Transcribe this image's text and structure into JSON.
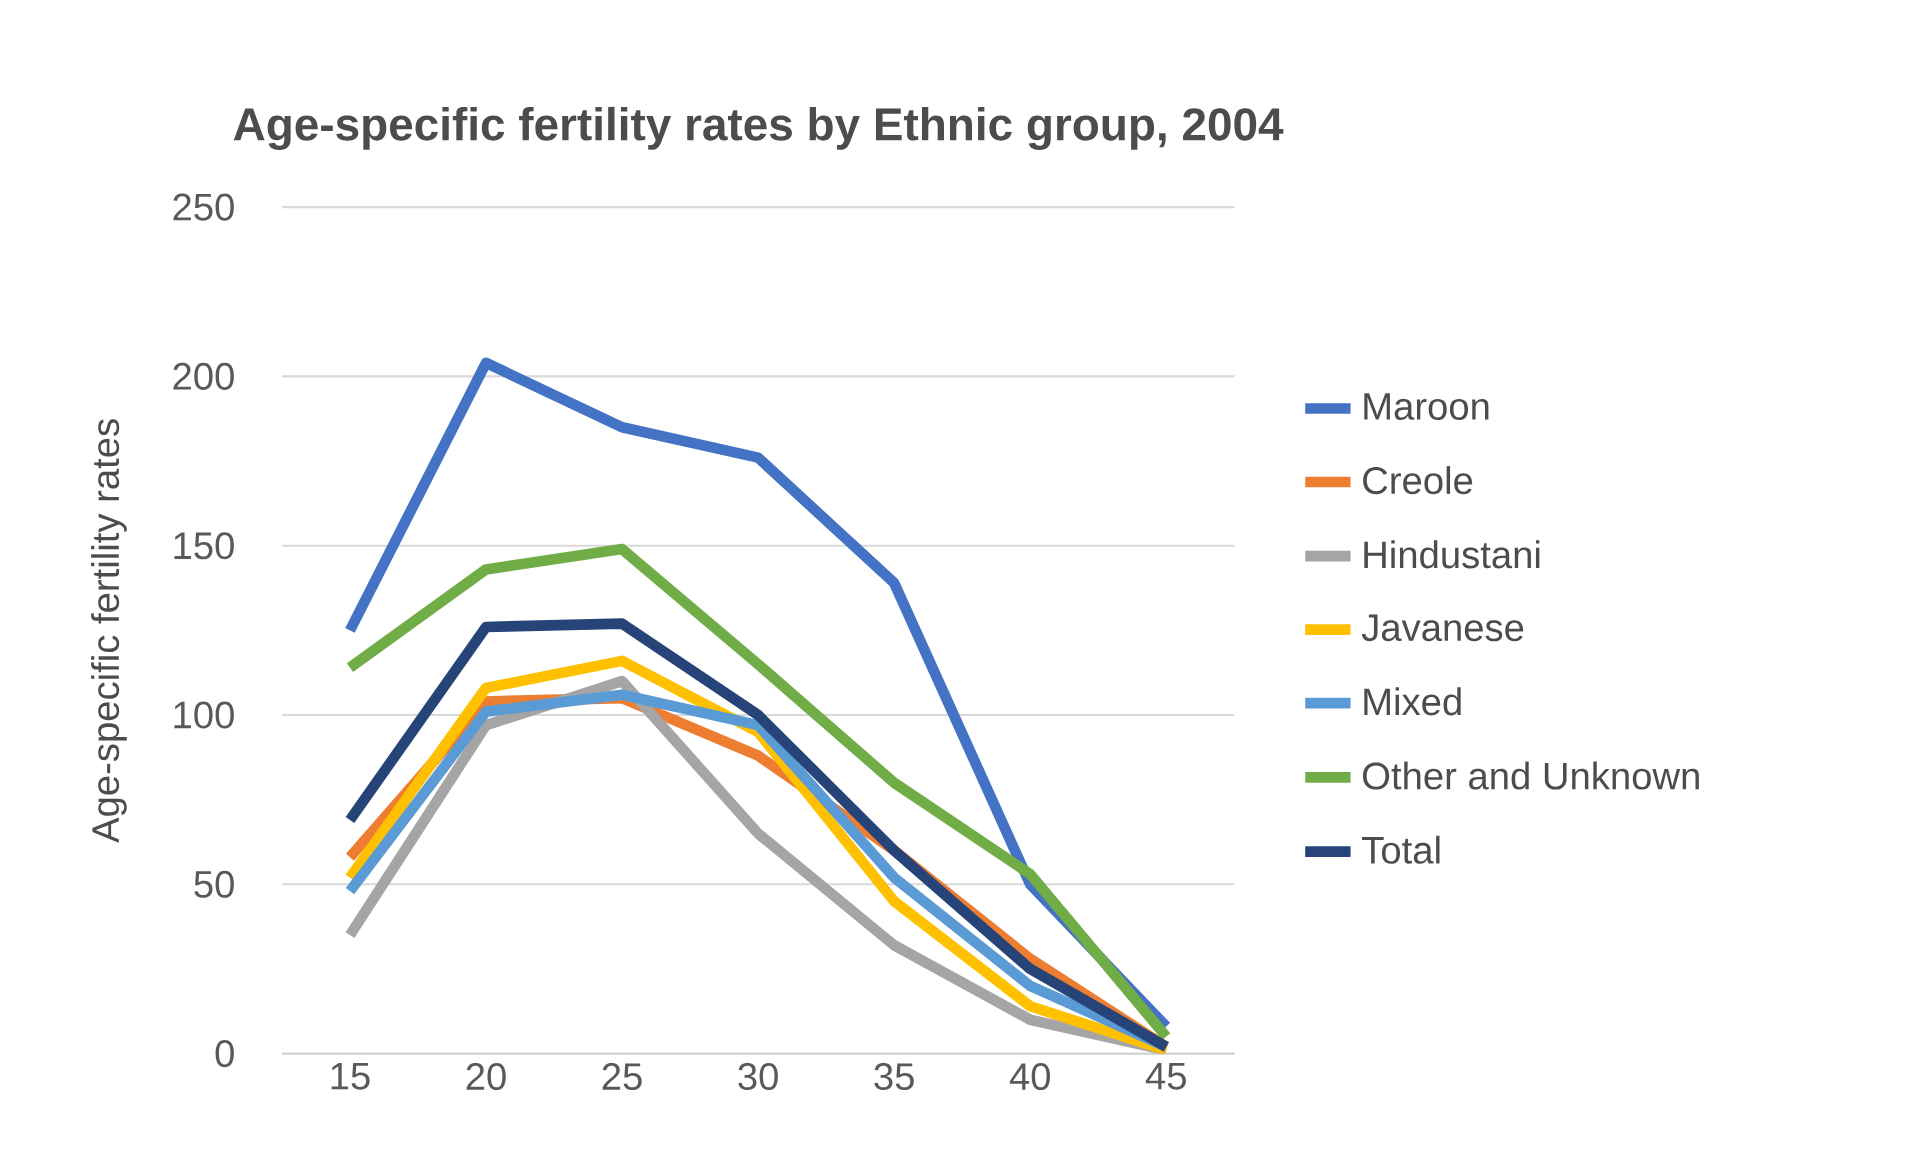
{
  "chart_data": {
    "type": "line",
    "title": "Age-specific fertility rates by Ethnic group, 2004",
    "ylabel": "Age-specific fertility rates",
    "categories": [
      "15",
      "20",
      "25",
      "30",
      "35",
      "40",
      "45"
    ],
    "ylim": [
      0,
      250
    ],
    "yticks": [
      0,
      50,
      100,
      150,
      200,
      250
    ],
    "grid": "y",
    "legend": "right",
    "marker": "none",
    "line_style": "solid",
    "series": [
      {
        "name": "Maroon",
        "color": "#4472c4",
        "values": [
          125,
          204,
          185,
          176,
          139,
          50,
          8
        ]
      },
      {
        "name": "Creole",
        "color": "#ed7d31",
        "values": [
          58,
          104,
          105,
          88,
          60,
          28,
          2
        ]
      },
      {
        "name": "Hindustani",
        "color": "#a5a5a5",
        "values": [
          35,
          97,
          110,
          65,
          32,
          10,
          1
        ]
      },
      {
        "name": "Javanese",
        "color": "#ffc000",
        "values": [
          52,
          108,
          116,
          95,
          45,
          14,
          1
        ]
      },
      {
        "name": "Mixed",
        "color": "#5b9bd5",
        "values": [
          48,
          101,
          106,
          97,
          52,
          20,
          2
        ]
      },
      {
        "name": "Other and Unknown",
        "color": "#70ad47",
        "values": [
          114,
          143,
          149,
          115,
          80,
          53,
          5
        ]
      },
      {
        "name": "Total",
        "color": "#264478",
        "values": [
          69,
          126,
          127,
          100,
          60,
          25,
          2
        ]
      }
    ]
  }
}
